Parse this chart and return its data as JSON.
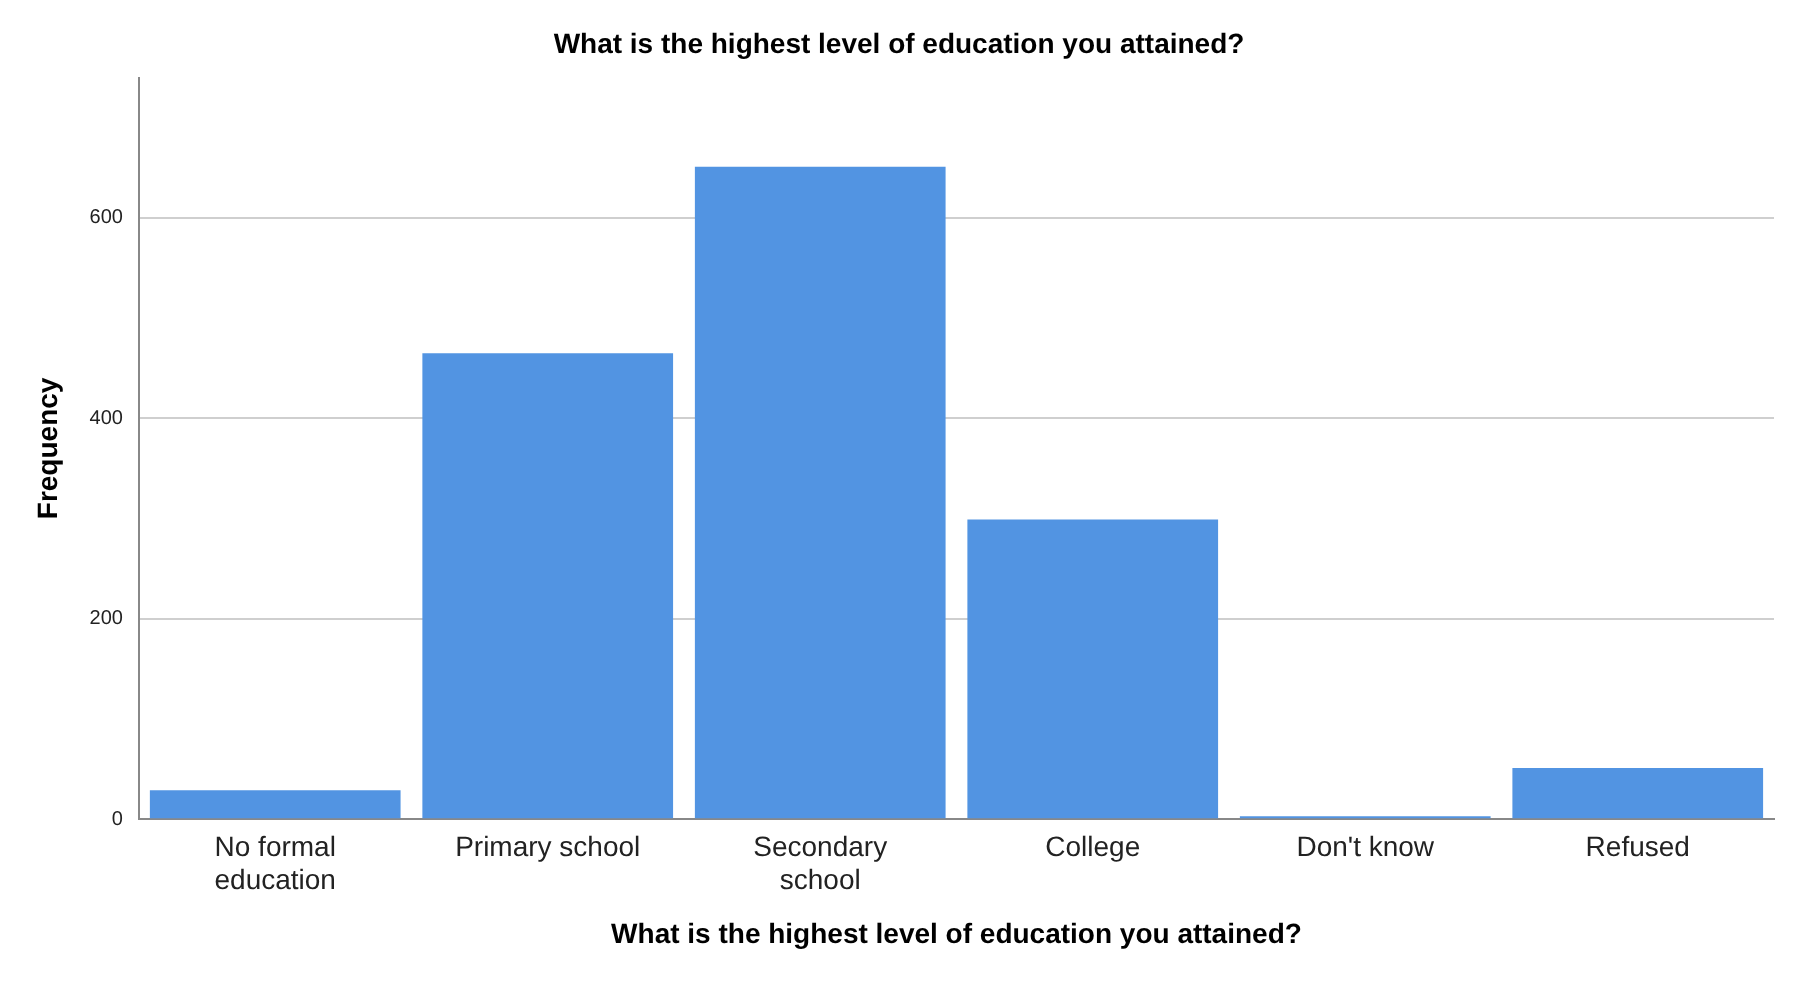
{
  "chart_data": {
    "type": "bar",
    "title": "What is the highest level of education you attained?",
    "xlabel": "What is the highest level of education you attained?",
    "ylabel": "Frequency",
    "categories": [
      "No formal education",
      "Primary school",
      "Secondary school",
      "College",
      "Don't know",
      "Refused"
    ],
    "values": [
      29,
      465,
      651,
      299,
      3,
      51
    ],
    "color": "#5294e2",
    "ylim": [
      0,
      740
    ],
    "yticks": [
      0,
      200,
      400,
      600
    ],
    "grid": "y",
    "legend": false
  }
}
